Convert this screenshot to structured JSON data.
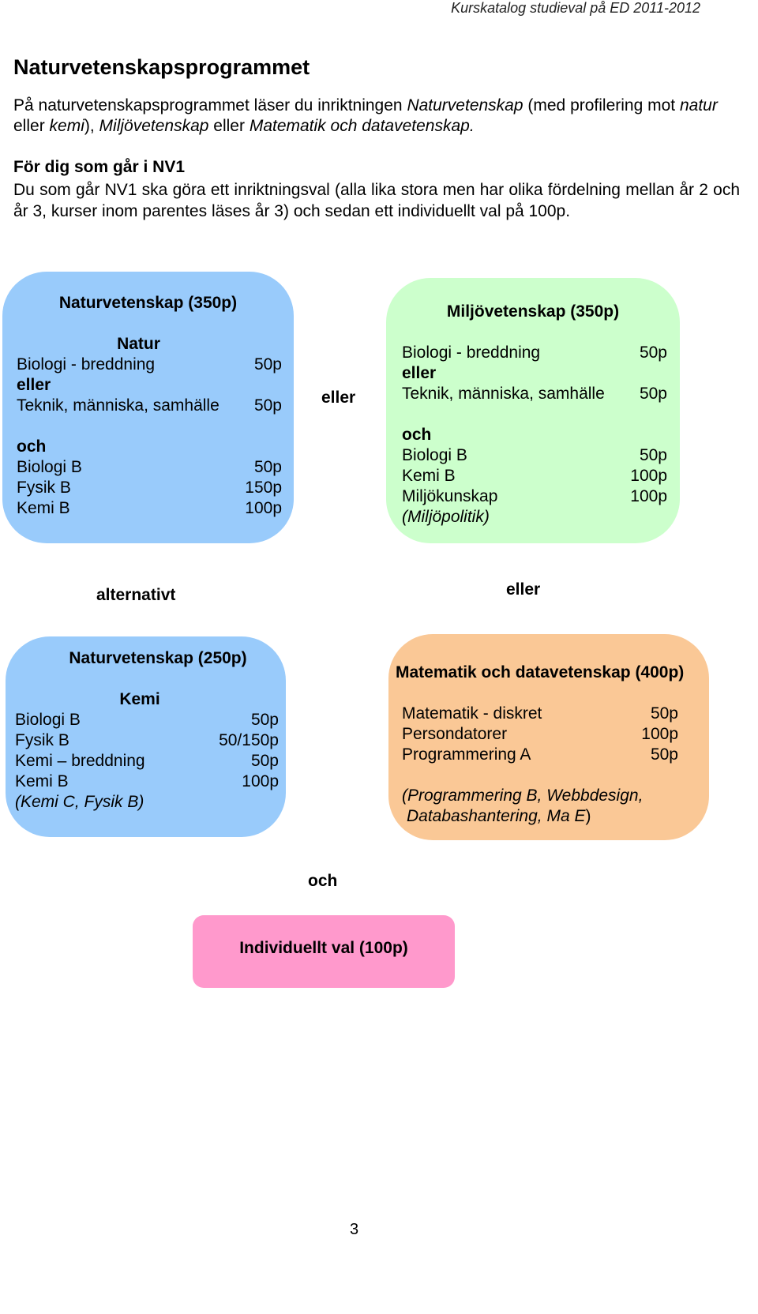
{
  "header": "Kurskatalog studieval på ED 2011-2012",
  "title": "Naturvetenskapsprogrammet",
  "intro": {
    "p1": "På naturvetenskapsprogrammet läser du inriktningen",
    "p2": "Naturvetenskap",
    "p3": "(med profilering mot",
    "p4": "natur",
    "p5": "eller",
    "p6": "kemi",
    "p7": "),",
    "p8": "Miljövetenskap",
    "p9": "eller",
    "p10": "Matematik och datavetenskap."
  },
  "nv1": {
    "heading": "För dig som går i NV1",
    "text": "Du som går NV1 ska göra ett inriktningsval (alla lika stora men har olika fördelning mellan år 2 och år 3, kurser inom parentes läses år 3) och sedan ett individuellt val på 100p."
  },
  "box_nat350": {
    "title": "Naturvetenskap (350p)",
    "sub": "Natur",
    "c1": "Biologi - breddning",
    "p1": "50p",
    "or": "eller",
    "c2": "Teknik, människa, samhälle",
    "p2": "50p",
    "and": "och",
    "c3": "Biologi B",
    "p3": "50p",
    "c4": "Fysik B",
    "p4": "150p",
    "c5": "Kemi B",
    "p5": "100p"
  },
  "between1": "eller",
  "box_miljo": {
    "title": "Miljövetenskap (350p)",
    "c1": "Biologi - breddning",
    "p1": "50p",
    "or": "eller",
    "c2": "Teknik, människa, samhälle",
    "p2": "50p",
    "and": "och",
    "c3": "Biologi B",
    "p3": "50p",
    "c4": "Kemi B",
    "p4": "100p",
    "c5": "Miljökunskap",
    "p5": "100p",
    "c6": "(Miljöpolitik)"
  },
  "alternativt": "alternativt",
  "eller2": "eller",
  "box_nat250": {
    "title": "Naturvetenskap (250p)",
    "sub": "Kemi",
    "c1": "Biologi B",
    "p1": "50p",
    "c2": "Fysik B",
    "p2": "50/150p",
    "c3": "Kemi – breddning",
    "p3": "50p",
    "c4": "Kemi B",
    "p4": "100p",
    "c5": "(Kemi C, Fysik B)"
  },
  "box_matte": {
    "title": "Matematik och datavetenskap (400p)",
    "c1": "Matematik - diskret",
    "p1": "50p",
    "c2": "Persondatorer",
    "p2": "100p",
    "c3": "Programmering A",
    "p3": "50p",
    "c4a": "(Programmering B, Webbdesign,",
    "c4b": "Databashantering, Ma E",
    "c4c": ")"
  },
  "och": "och",
  "box_indiv": {
    "title": "Individuellt val (100p)"
  },
  "page_number": "3"
}
